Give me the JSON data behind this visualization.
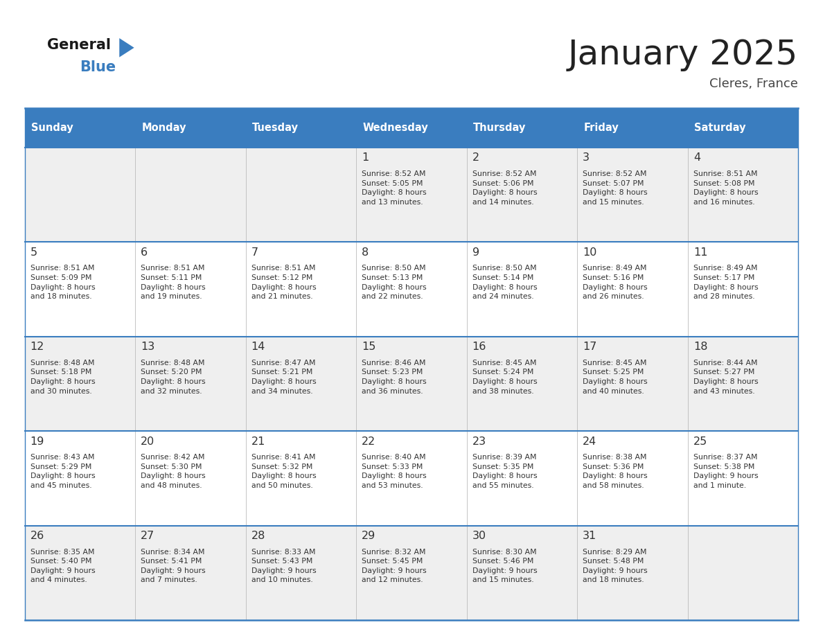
{
  "title": "January 2025",
  "subtitle": "Cleres, France",
  "header_color": "#3a7dbf",
  "header_text_color": "#ffffff",
  "cell_bg_odd": "#efefef",
  "cell_bg_even": "#ffffff",
  "border_color": "#3a7dbf",
  "text_color": "#333333",
  "day_num_color": "#333333",
  "days_of_week": [
    "Sunday",
    "Monday",
    "Tuesday",
    "Wednesday",
    "Thursday",
    "Friday",
    "Saturday"
  ],
  "calendar_data": [
    [
      {
        "day": "",
        "info": ""
      },
      {
        "day": "",
        "info": ""
      },
      {
        "day": "",
        "info": ""
      },
      {
        "day": "1",
        "info": "Sunrise: 8:52 AM\nSunset: 5:05 PM\nDaylight: 8 hours\nand 13 minutes."
      },
      {
        "day": "2",
        "info": "Sunrise: 8:52 AM\nSunset: 5:06 PM\nDaylight: 8 hours\nand 14 minutes."
      },
      {
        "day": "3",
        "info": "Sunrise: 8:52 AM\nSunset: 5:07 PM\nDaylight: 8 hours\nand 15 minutes."
      },
      {
        "day": "4",
        "info": "Sunrise: 8:51 AM\nSunset: 5:08 PM\nDaylight: 8 hours\nand 16 minutes."
      }
    ],
    [
      {
        "day": "5",
        "info": "Sunrise: 8:51 AM\nSunset: 5:09 PM\nDaylight: 8 hours\nand 18 minutes."
      },
      {
        "day": "6",
        "info": "Sunrise: 8:51 AM\nSunset: 5:11 PM\nDaylight: 8 hours\nand 19 minutes."
      },
      {
        "day": "7",
        "info": "Sunrise: 8:51 AM\nSunset: 5:12 PM\nDaylight: 8 hours\nand 21 minutes."
      },
      {
        "day": "8",
        "info": "Sunrise: 8:50 AM\nSunset: 5:13 PM\nDaylight: 8 hours\nand 22 minutes."
      },
      {
        "day": "9",
        "info": "Sunrise: 8:50 AM\nSunset: 5:14 PM\nDaylight: 8 hours\nand 24 minutes."
      },
      {
        "day": "10",
        "info": "Sunrise: 8:49 AM\nSunset: 5:16 PM\nDaylight: 8 hours\nand 26 minutes."
      },
      {
        "day": "11",
        "info": "Sunrise: 8:49 AM\nSunset: 5:17 PM\nDaylight: 8 hours\nand 28 minutes."
      }
    ],
    [
      {
        "day": "12",
        "info": "Sunrise: 8:48 AM\nSunset: 5:18 PM\nDaylight: 8 hours\nand 30 minutes."
      },
      {
        "day": "13",
        "info": "Sunrise: 8:48 AM\nSunset: 5:20 PM\nDaylight: 8 hours\nand 32 minutes."
      },
      {
        "day": "14",
        "info": "Sunrise: 8:47 AM\nSunset: 5:21 PM\nDaylight: 8 hours\nand 34 minutes."
      },
      {
        "day": "15",
        "info": "Sunrise: 8:46 AM\nSunset: 5:23 PM\nDaylight: 8 hours\nand 36 minutes."
      },
      {
        "day": "16",
        "info": "Sunrise: 8:45 AM\nSunset: 5:24 PM\nDaylight: 8 hours\nand 38 minutes."
      },
      {
        "day": "17",
        "info": "Sunrise: 8:45 AM\nSunset: 5:25 PM\nDaylight: 8 hours\nand 40 minutes."
      },
      {
        "day": "18",
        "info": "Sunrise: 8:44 AM\nSunset: 5:27 PM\nDaylight: 8 hours\nand 43 minutes."
      }
    ],
    [
      {
        "day": "19",
        "info": "Sunrise: 8:43 AM\nSunset: 5:29 PM\nDaylight: 8 hours\nand 45 minutes."
      },
      {
        "day": "20",
        "info": "Sunrise: 8:42 AM\nSunset: 5:30 PM\nDaylight: 8 hours\nand 48 minutes."
      },
      {
        "day": "21",
        "info": "Sunrise: 8:41 AM\nSunset: 5:32 PM\nDaylight: 8 hours\nand 50 minutes."
      },
      {
        "day": "22",
        "info": "Sunrise: 8:40 AM\nSunset: 5:33 PM\nDaylight: 8 hours\nand 53 minutes."
      },
      {
        "day": "23",
        "info": "Sunrise: 8:39 AM\nSunset: 5:35 PM\nDaylight: 8 hours\nand 55 minutes."
      },
      {
        "day": "24",
        "info": "Sunrise: 8:38 AM\nSunset: 5:36 PM\nDaylight: 8 hours\nand 58 minutes."
      },
      {
        "day": "25",
        "info": "Sunrise: 8:37 AM\nSunset: 5:38 PM\nDaylight: 9 hours\nand 1 minute."
      }
    ],
    [
      {
        "day": "26",
        "info": "Sunrise: 8:35 AM\nSunset: 5:40 PM\nDaylight: 9 hours\nand 4 minutes."
      },
      {
        "day": "27",
        "info": "Sunrise: 8:34 AM\nSunset: 5:41 PM\nDaylight: 9 hours\nand 7 minutes."
      },
      {
        "day": "28",
        "info": "Sunrise: 8:33 AM\nSunset: 5:43 PM\nDaylight: 9 hours\nand 10 minutes."
      },
      {
        "day": "29",
        "info": "Sunrise: 8:32 AM\nSunset: 5:45 PM\nDaylight: 9 hours\nand 12 minutes."
      },
      {
        "day": "30",
        "info": "Sunrise: 8:30 AM\nSunset: 5:46 PM\nDaylight: 9 hours\nand 15 minutes."
      },
      {
        "day": "31",
        "info": "Sunrise: 8:29 AM\nSunset: 5:48 PM\nDaylight: 9 hours\nand 18 minutes."
      },
      {
        "day": "",
        "info": ""
      }
    ]
  ],
  "logo_color_general": "#1a1a1a",
  "logo_color_blue": "#3a7dbf",
  "logo_triangle_color": "#3a7dbf"
}
